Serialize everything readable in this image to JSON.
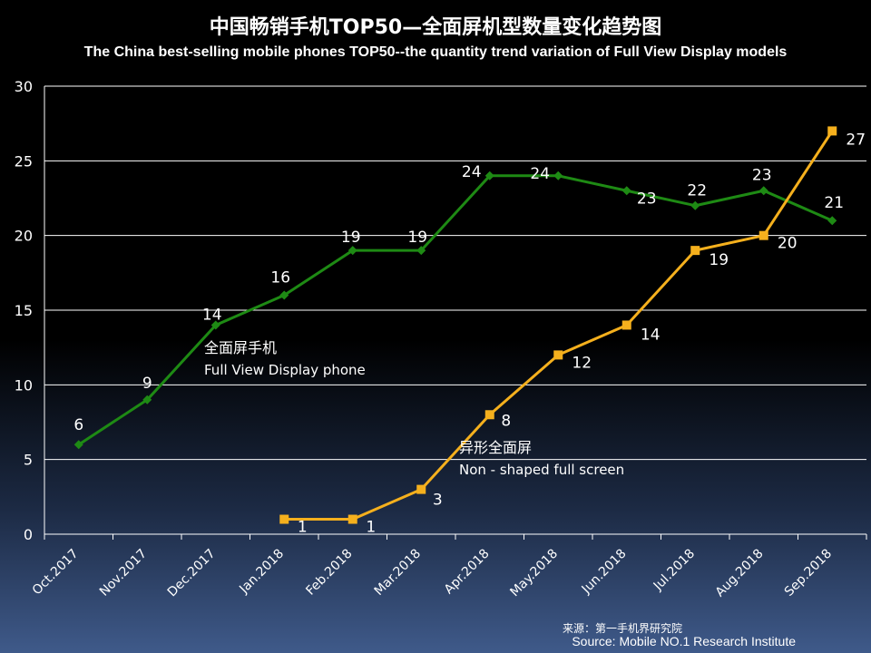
{
  "title": "中国畅销手机TOP50—全面屏机型数量变化趋势图",
  "subtitle": "The China best-selling mobile phones TOP50--the quantity trend variation of Full View Display models",
  "source": {
    "cn": "来源：第一手机界研究院",
    "en": "Source: Mobile NO.1 Research Institute"
  },
  "colors": {
    "full_view": "#1e8a14",
    "non_shaped": "#f5b01d",
    "grid": "#ffffff",
    "background_top": "#000000",
    "background_bottom": "#3f5a8a"
  },
  "chart_data": {
    "type": "line",
    "categories": [
      "Oct.2017",
      "Nov.2017",
      "Dec.2017",
      "Jan.2018",
      "Feb.2018",
      "Mar.2018",
      "Apr.2018",
      "May.2018",
      "Jun.2018",
      "Jul.2018",
      "Aug.2018",
      "Sep.2018"
    ],
    "ylim": [
      0,
      30
    ],
    "yticks": [
      0,
      5,
      10,
      15,
      20,
      25,
      30
    ],
    "grid": true,
    "series": [
      {
        "name": "全面屏手机",
        "name_en": "Full View Display phone",
        "color": "#1e8a14",
        "marker": "diamond",
        "values": [
          6,
          9,
          14,
          16,
          19,
          19,
          24,
          24,
          23,
          22,
          23,
          21
        ]
      },
      {
        "name": "异形全面屏",
        "name_en": "Non - shaped full screen",
        "color": "#f5b01d",
        "marker": "square",
        "values": [
          null,
          null,
          null,
          1,
          1,
          3,
          8,
          12,
          14,
          19,
          20,
          27
        ]
      }
    ]
  }
}
